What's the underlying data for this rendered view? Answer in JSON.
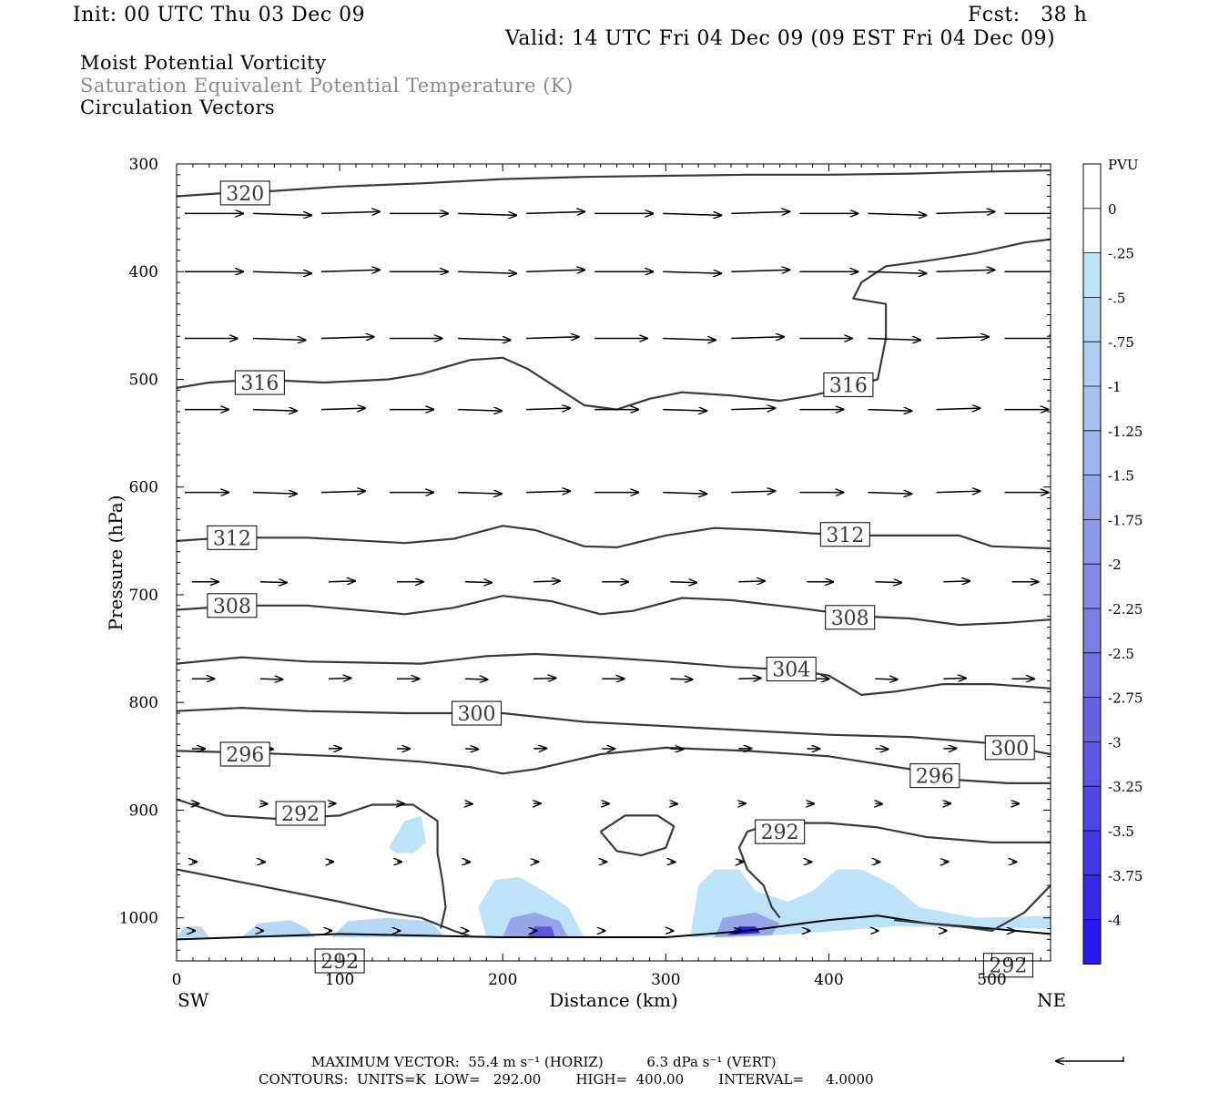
{
  "header": {
    "init": "Init: 00 UTC Thu 03 Dec 09",
    "fcst": "Fcst:   38 h",
    "valid": "Valid: 14 UTC Fri 04 Dec 09 (09 EST Fri 04 Dec 09)"
  },
  "fields": [
    {
      "label": "Moist Potential Vorticity",
      "color": "#000000"
    },
    {
      "label": "Saturation Equivalent Potential Temperature (K)",
      "color": "#8a8a8a"
    },
    {
      "label": "Circulation Vectors",
      "color": "#000000"
    }
  ],
  "footer": {
    "max_vector": "MAXIMUM VECTOR:  55.4 m s⁻¹ (HORIZ)          6.3 dPa s⁻¹ (VERT)",
    "contours": "CONTOURS:  UNITS=K  LOW=   292.00        HIGH=  400.00        INTERVAL=     4.0000"
  },
  "chart_data": {
    "type": "cross-section",
    "xlabel": "Distance (km)",
    "ylabel": "Pressure (hPa)",
    "x_ticks": [
      0,
      100,
      200,
      300,
      400,
      500
    ],
    "y_ticks": [
      300,
      400,
      500,
      600,
      700,
      800,
      900,
      1000
    ],
    "xlim": [
      0,
      536
    ],
    "ylim": [
      300,
      1040
    ],
    "y_inverted": true,
    "end_labels": {
      "left": "SW",
      "right": "NE"
    },
    "colorbar": {
      "title": "PVU",
      "ticks": [
        "0",
        "-.25",
        "-.5",
        "-.75",
        "-1",
        "-1.25",
        "-1.5",
        "-1.75",
        "-2",
        "-2.25",
        "-2.5",
        "-2.75",
        "-3",
        "-3.25",
        "-3.5",
        "-3.75",
        "-4"
      ],
      "colors": [
        "#ffffff",
        "#ffffff",
        "#bde3fb",
        "#b6d8f7",
        "#afccf3",
        "#a8c0ef",
        "#9fb3ec",
        "#97a6e9",
        "#8e99e6",
        "#858be4",
        "#7c7de2",
        "#7270e1",
        "#6862e1",
        "#5d54e2",
        "#5246e3",
        "#4537e6",
        "#3828ea",
        "#2a17f0"
      ]
    },
    "isentropes": [
      {
        "label": "320",
        "points": [
          [
            0,
            330
          ],
          [
            30,
            327
          ],
          [
            60,
            325
          ],
          [
            100,
            321
          ],
          [
            150,
            318
          ],
          [
            200,
            314
          ],
          [
            250,
            312
          ],
          [
            300,
            311
          ],
          [
            350,
            310
          ],
          [
            400,
            310
          ],
          [
            450,
            309
          ],
          [
            500,
            307
          ],
          [
            536,
            306
          ]
        ]
      },
      {
        "label": "316",
        "points": [
          [
            0,
            508
          ],
          [
            20,
            503
          ],
          [
            50,
            500
          ],
          [
            90,
            503
          ],
          [
            130,
            500
          ],
          [
            150,
            495
          ],
          [
            180,
            482
          ],
          [
            200,
            480
          ],
          [
            215,
            490
          ],
          [
            250,
            524
          ],
          [
            270,
            528
          ],
          [
            290,
            518
          ],
          [
            310,
            512
          ],
          [
            340,
            515
          ],
          [
            370,
            520
          ],
          [
            390,
            515
          ],
          [
            410,
            508
          ],
          [
            430,
            500
          ],
          [
            435,
            462
          ],
          [
            435,
            430
          ],
          [
            415,
            425
          ],
          [
            420,
            410
          ],
          [
            435,
            395
          ],
          [
            460,
            390
          ],
          [
            490,
            383
          ],
          [
            520,
            373
          ],
          [
            536,
            370
          ]
        ]
      },
      {
        "label": "312",
        "points": [
          [
            0,
            650
          ],
          [
            30,
            647
          ],
          [
            80,
            647
          ],
          [
            140,
            652
          ],
          [
            170,
            648
          ],
          [
            200,
            636
          ],
          [
            220,
            640
          ],
          [
            250,
            655
          ],
          [
            270,
            656
          ],
          [
            300,
            645
          ],
          [
            330,
            638
          ],
          [
            360,
            640
          ],
          [
            390,
            643
          ],
          [
            420,
            645
          ],
          [
            450,
            645
          ],
          [
            480,
            645
          ],
          [
            500,
            655
          ],
          [
            536,
            657
          ]
        ]
      },
      {
        "label": "308",
        "points": [
          [
            0,
            714
          ],
          [
            40,
            710
          ],
          [
            80,
            710
          ],
          [
            140,
            718
          ],
          [
            170,
            712
          ],
          [
            200,
            701
          ],
          [
            230,
            706
          ],
          [
            260,
            718
          ],
          [
            280,
            715
          ],
          [
            310,
            703
          ],
          [
            340,
            705
          ],
          [
            380,
            712
          ],
          [
            420,
            720
          ],
          [
            450,
            722
          ],
          [
            480,
            728
          ],
          [
            510,
            726
          ],
          [
            536,
            723
          ]
        ]
      },
      {
        "label": "304",
        "points": [
          [
            0,
            764
          ],
          [
            40,
            758
          ],
          [
            80,
            762
          ],
          [
            150,
            764
          ],
          [
            190,
            757
          ],
          [
            220,
            755
          ],
          [
            260,
            758
          ],
          [
            300,
            762
          ],
          [
            340,
            767
          ],
          [
            380,
            770
          ],
          [
            400,
            775
          ],
          [
            420,
            793
          ],
          [
            440,
            790
          ],
          [
            470,
            783
          ],
          [
            500,
            783
          ],
          [
            536,
            787
          ]
        ]
      },
      {
        "label": "300",
        "points": [
          [
            0,
            808
          ],
          [
            40,
            805
          ],
          [
            80,
            808
          ],
          [
            140,
            810
          ],
          [
            200,
            810
          ],
          [
            250,
            818
          ],
          [
            300,
            822
          ],
          [
            350,
            826
          ],
          [
            400,
            830
          ],
          [
            450,
            832
          ],
          [
            500,
            838
          ],
          [
            536,
            848
          ]
        ]
      },
      {
        "label": "296",
        "points": [
          [
            0,
            845
          ],
          [
            50,
            847
          ],
          [
            100,
            850
          ],
          [
            150,
            855
          ],
          [
            180,
            860
          ],
          [
            200,
            866
          ],
          [
            220,
            862
          ],
          [
            260,
            848
          ],
          [
            300,
            842
          ],
          [
            350,
            845
          ],
          [
            400,
            850
          ],
          [
            450,
            862
          ],
          [
            480,
            872
          ],
          [
            510,
            875
          ],
          [
            536,
            875
          ]
        ]
      },
      {
        "label": "292",
        "points": [
          [
            0,
            890
          ],
          [
            10,
            895
          ],
          [
            30,
            905
          ],
          [
            60,
            908
          ],
          [
            100,
            905
          ],
          [
            120,
            895
          ],
          [
            145,
            895
          ],
          [
            160,
            910
          ],
          [
            160,
            940
          ],
          [
            163,
            965
          ],
          [
            165,
            990
          ],
          [
            162,
            1010
          ]
        ]
      },
      {
        "label": "292",
        "points": [
          [
            0,
            955
          ],
          [
            50,
            970
          ],
          [
            100,
            985
          ],
          [
            130,
            995
          ],
          [
            150,
            1000
          ],
          [
            170,
            1012
          ],
          [
            180,
            1017
          ]
        ]
      },
      {
        "label": "292",
        "points": [
          [
            375,
            912
          ],
          [
            360,
            915
          ],
          [
            350,
            920
          ],
          [
            345,
            935
          ],
          [
            350,
            955
          ],
          [
            360,
            970
          ],
          [
            365,
            990
          ],
          [
            370,
            1000
          ]
        ]
      },
      {
        "label": "292",
        "points": [
          [
            375,
            912
          ],
          [
            400,
            912
          ],
          [
            430,
            916
          ],
          [
            460,
            925
          ],
          [
            500,
            930
          ],
          [
            536,
            930
          ]
        ]
      },
      {
        "label": "292",
        "points": [
          [
            440,
            1002
          ],
          [
            480,
            1008
          ],
          [
            500,
            1012
          ],
          [
            520,
            995
          ],
          [
            536,
            970
          ]
        ]
      },
      {
        "label": "",
        "points": [
          [
            260,
            920
          ],
          [
            275,
            905
          ],
          [
            295,
            905
          ],
          [
            305,
            915
          ],
          [
            300,
            935
          ],
          [
            285,
            942
          ],
          [
            270,
            938
          ],
          [
            260,
            920
          ]
        ]
      }
    ],
    "labels": [
      {
        "text": "320",
        "x": 42,
        "y": 327
      },
      {
        "text": "316",
        "x": 51,
        "y": 503
      },
      {
        "text": "316",
        "x": 412,
        "y": 505
      },
      {
        "text": "312",
        "x": 34,
        "y": 647
      },
      {
        "text": "312",
        "x": 410,
        "y": 644
      },
      {
        "text": "308",
        "x": 34,
        "y": 710
      },
      {
        "text": "308",
        "x": 413,
        "y": 721
      },
      {
        "text": "304",
        "x": 377,
        "y": 769
      },
      {
        "text": "300",
        "x": 184,
        "y": 810
      },
      {
        "text": "300",
        "x": 511,
        "y": 842
      },
      {
        "text": "296",
        "x": 42,
        "y": 848
      },
      {
        "text": "296",
        "x": 465,
        "y": 868
      },
      {
        "text": "292",
        "x": 76,
        "y": 903
      },
      {
        "text": "292",
        "x": 370,
        "y": 920
      },
      {
        "text": "292",
        "x": 100,
        "y": 1040
      },
      {
        "text": "292",
        "x": 510,
        "y": 1044
      }
    ],
    "surface": {
      "points": [
        [
          0,
          1020
        ],
        [
          100,
          1015
        ],
        [
          200,
          1018
        ],
        [
          300,
          1018
        ],
        [
          350,
          1012
        ],
        [
          400,
          1002
        ],
        [
          430,
          998
        ],
        [
          460,
          1005
        ],
        [
          500,
          1010
        ],
        [
          536,
          1015
        ]
      ]
    },
    "pv_patches": [
      {
        "value": -0.25,
        "points": [
          [
            130,
            935
          ],
          [
            140,
            910
          ],
          [
            150,
            905
          ],
          [
            153,
            930
          ],
          [
            145,
            940
          ],
          [
            135,
            940
          ]
        ]
      },
      {
        "value": -0.25,
        "points": [
          [
            190,
            1018
          ],
          [
            185,
            990
          ],
          [
            195,
            965
          ],
          [
            210,
            962
          ],
          [
            225,
            975
          ],
          [
            240,
            990
          ],
          [
            250,
            1018
          ]
        ]
      },
      {
        "value": -0.25,
        "points": [
          [
            315,
            1018
          ],
          [
            320,
            970
          ],
          [
            330,
            955
          ],
          [
            345,
            955
          ],
          [
            355,
            975
          ],
          [
            375,
            985
          ],
          [
            390,
            975
          ],
          [
            405,
            955
          ],
          [
            420,
            955
          ],
          [
            440,
            970
          ],
          [
            455,
            990
          ],
          [
            490,
            1000
          ],
          [
            536,
            998
          ],
          [
            536,
            1010
          ],
          [
            440,
            1008
          ],
          [
            380,
            1015
          ],
          [
            340,
            1018
          ]
        ]
      },
      {
        "value": -0.5,
        "points": [
          [
            40,
            1018
          ],
          [
            50,
            1005
          ],
          [
            70,
            1002
          ],
          [
            80,
            1010
          ],
          [
            85,
            1018
          ]
        ]
      },
      {
        "value": -0.5,
        "points": [
          [
            95,
            1018
          ],
          [
            105,
            1003
          ],
          [
            130,
            1000
          ],
          [
            155,
            1003
          ],
          [
            165,
            1018
          ]
        ]
      },
      {
        "value": -0.5,
        "points": [
          [
            0,
            1018
          ],
          [
            5,
            1008
          ],
          [
            15,
            1008
          ],
          [
            20,
            1018
          ]
        ]
      },
      {
        "value": -1.5,
        "points": [
          [
            200,
            1018
          ],
          [
            205,
            1000
          ],
          [
            220,
            995
          ],
          [
            235,
            1003
          ],
          [
            240,
            1018
          ]
        ]
      },
      {
        "value": -1.5,
        "points": [
          [
            330,
            1018
          ],
          [
            335,
            1000
          ],
          [
            355,
            995
          ],
          [
            370,
            1005
          ],
          [
            365,
            1016
          ]
        ]
      },
      {
        "value": -3.0,
        "points": [
          [
            215,
            1018
          ],
          [
            220,
            1008
          ],
          [
            230,
            1008
          ],
          [
            232,
            1018
          ]
        ]
      },
      {
        "value": -4.0,
        "points": [
          [
            338,
            1016
          ],
          [
            345,
            1008
          ],
          [
            355,
            1008
          ],
          [
            358,
            1014
          ]
        ]
      }
    ],
    "vector_levels": [
      {
        "p": 346,
        "length": 1.0
      },
      {
        "p": 400,
        "length": 1.0
      },
      {
        "p": 462,
        "length": 0.9
      },
      {
        "p": 528,
        "length": 0.75
      },
      {
        "p": 605,
        "length": 0.75
      },
      {
        "p": 688,
        "length": 0.45
      },
      {
        "p": 778,
        "length": 0.38
      },
      {
        "p": 843,
        "length": 0.22
      },
      {
        "p": 894,
        "length": 0.12
      },
      {
        "p": 948,
        "length": 0.08
      },
      {
        "p": 1012,
        "length": 0.05
      }
    ],
    "reference_vector": {
      "direction": "left"
    }
  }
}
